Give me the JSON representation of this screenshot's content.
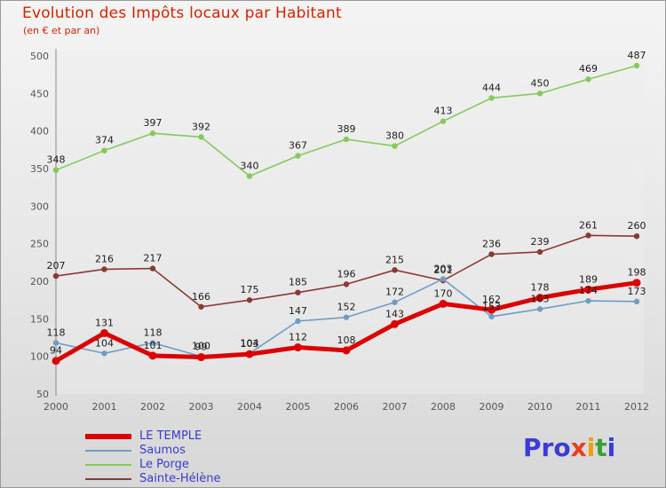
{
  "header": {
    "title": "Evolution des Impôts locaux par Habitant",
    "subtitle": "(en € et par an)"
  },
  "chart_data": {
    "type": "line",
    "x": [
      2000,
      2001,
      2002,
      2003,
      2004,
      2005,
      2006,
      2007,
      2008,
      2009,
      2010,
      2011,
      2012
    ],
    "ylim": [
      50,
      500
    ],
    "yticks": [
      50,
      100,
      150,
      200,
      250,
      300,
      350,
      400,
      450,
      500
    ],
    "grid": false,
    "legend_position": "bottom-left",
    "series": [
      {
        "name": "LE TEMPLE",
        "color": "#dd0000",
        "width": 5,
        "values": [
          94,
          131,
          101,
          99,
          103,
          112,
          108,
          143,
          170,
          162,
          178,
          189,
          198
        ]
      },
      {
        "name": "Saumos",
        "color": "#6f9cc4",
        "width": 1.6,
        "values": [
          118,
          104,
          118,
          100,
          104,
          147,
          152,
          172,
          203,
          153,
          163,
          174,
          173
        ]
      },
      {
        "name": "Le Porge",
        "color": "#85c95c",
        "width": 1.6,
        "values": [
          348,
          374,
          397,
          392,
          340,
          367,
          389,
          380,
          413,
          444,
          450,
          469,
          487
        ]
      },
      {
        "name": "Sainte-Hélène",
        "color": "#8a3a35",
        "width": 1.6,
        "values": [
          207,
          216,
          217,
          166,
          175,
          185,
          196,
          215,
          201,
          236,
          239,
          261,
          260
        ]
      }
    ]
  },
  "legend": {
    "items": [
      "LE TEMPLE",
      "Saumos",
      "Le Porge",
      "Sainte-Hélène"
    ]
  },
  "logo": {
    "text": "Proxiti",
    "letters": [
      {
        "char": "P",
        "color": "#3b3bd6"
      },
      {
        "char": "r",
        "color": "#3b3bd6"
      },
      {
        "char": "o",
        "color": "#3b3bd6"
      },
      {
        "char": "x",
        "color": "#e8401c"
      },
      {
        "char": "i",
        "color": "#f0a000"
      },
      {
        "char": "t",
        "color": "#35a235"
      },
      {
        "char": "i",
        "color": "#3b3bd6"
      }
    ]
  },
  "axis_style": {
    "tick_color": "#555555",
    "label_color": "#1c1c1c",
    "axis_color": "#888888"
  }
}
